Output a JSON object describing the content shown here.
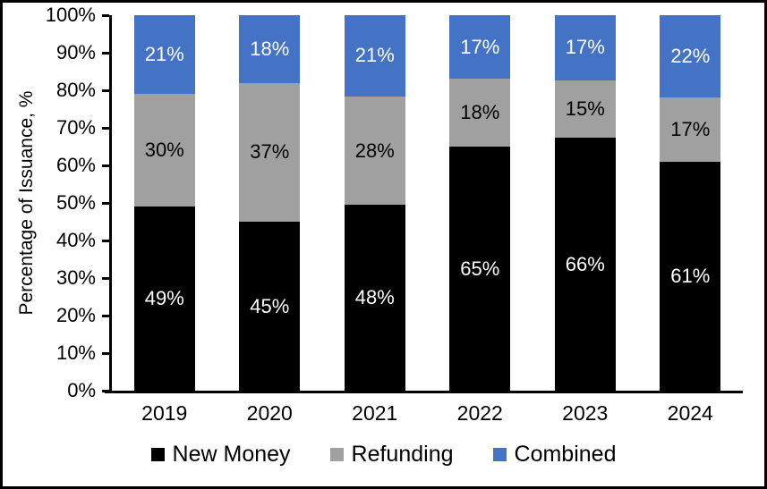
{
  "figure": {
    "background": "#ffffff",
    "border_color": "#000000",
    "axis_color": "#000000"
  },
  "chart_data": {
    "type": "bar",
    "stacked": true,
    "title": "",
    "categories": [
      "2019",
      "2020",
      "2021",
      "2022",
      "2023",
      "2024"
    ],
    "series": [
      {
        "name": "New Money",
        "color": "#000000",
        "label_color": "#ffffff",
        "values": [
          49,
          45,
          48,
          65,
          66,
          61
        ]
      },
      {
        "name": "Refunding",
        "color": "#A0A0A0",
        "label_color": "#000000",
        "values": [
          30,
          37,
          28,
          18,
          15,
          17
        ]
      },
      {
        "name": "Combined",
        "color": "#4472C4",
        "label_color": "#ffffff",
        "values": [
          21,
          18,
          21,
          17,
          17,
          22
        ]
      }
    ],
    "value_suffix": "%",
    "xlabel": "",
    "ylabel": "Percentage of Issuance, %",
    "ylim": [
      0,
      100
    ],
    "y_ticks": [
      0,
      10,
      20,
      30,
      40,
      50,
      60,
      70,
      80,
      90,
      100
    ],
    "y_tick_labels": [
      "0%",
      "10%",
      "20%",
      "30%",
      "40%",
      "50%",
      "60%",
      "70%",
      "80%",
      "90%",
      "100%"
    ],
    "grid": false,
    "legend_position": "bottom"
  }
}
